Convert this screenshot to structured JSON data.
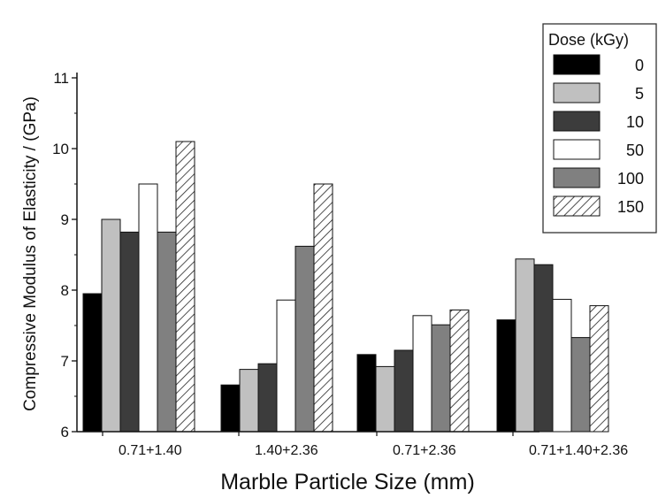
{
  "chart_data": {
    "type": "bar",
    "xlabel": "Marble Particle Size (mm)",
    "ylabel": "Compressive Modulus of Elasticity / (GPa)",
    "ylim": [
      6,
      11
    ],
    "yticks": [
      6,
      7,
      8,
      9,
      10,
      11
    ],
    "grid": false,
    "legend_title": "Dose (kGy)",
    "legend_position": "top-right",
    "categories": [
      "0.71+1.40",
      "1.40+2.36",
      "0.71+2.36",
      "0.71+1.40+2.36"
    ],
    "series": [
      {
        "name": "0",
        "color": "#000000",
        "pattern": "solid",
        "values": [
          7.95,
          6.66,
          7.09,
          7.58
        ]
      },
      {
        "name": "5",
        "color": "#c0c0c0",
        "pattern": "solid",
        "values": [
          9.0,
          6.88,
          6.92,
          8.44
        ]
      },
      {
        "name": "10",
        "color": "#3c3c3c",
        "pattern": "solid",
        "values": [
          8.82,
          6.96,
          7.15,
          8.36
        ]
      },
      {
        "name": "50",
        "color": "#ffffff",
        "pattern": "solid",
        "values": [
          9.5,
          7.86,
          7.64,
          7.87
        ]
      },
      {
        "name": "100",
        "color": "#808080",
        "pattern": "solid",
        "values": [
          8.82,
          8.62,
          7.51,
          7.33
        ]
      },
      {
        "name": "150",
        "color": "#ffffff",
        "pattern": "hatch",
        "values": [
          10.1,
          9.5,
          7.72,
          7.78
        ]
      }
    ]
  }
}
